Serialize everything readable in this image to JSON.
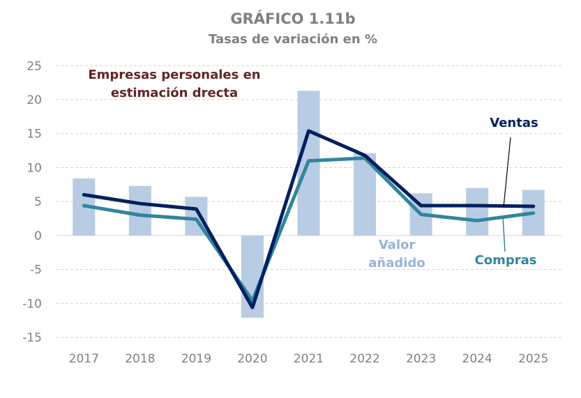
{
  "chart_data": {
    "type": "bar+line",
    "title": "GRÁFICO 1.11b",
    "subtitle": "Tasas de variación en %",
    "xlabel": "",
    "ylabel": "",
    "ylim": [
      -15,
      25
    ],
    "yticks": [
      25,
      20,
      15,
      10,
      5,
      0,
      -5,
      -10,
      -15
    ],
    "grid": true,
    "categories": [
      "2017",
      "2018",
      "2019",
      "2020",
      "2021",
      "2022",
      "2023",
      "2024",
      "2025"
    ],
    "annotation": "Empresas personales en estimación drecta",
    "annotation_lines": [
      "Empresas personales en",
      "estimación drecta"
    ],
    "series": [
      {
        "name": "Valor añadido",
        "label_lines": [
          "Valor",
          "añadido"
        ],
        "type": "bar",
        "color": "#b8cce4",
        "values": [
          8.4,
          7.3,
          5.7,
          -12.1,
          21.3,
          12.1,
          6.2,
          7.0,
          6.7
        ]
      },
      {
        "name": "Compras",
        "type": "line",
        "color": "#31859c",
        "values": [
          4.4,
          3.0,
          2.4,
          -9.6,
          11.0,
          11.4,
          3.1,
          2.2,
          3.3
        ]
      },
      {
        "name": "Ventas",
        "type": "line",
        "color": "#002060",
        "values": [
          6.0,
          4.7,
          3.9,
          -10.6,
          15.4,
          11.8,
          4.4,
          4.4,
          4.3
        ]
      }
    ],
    "colors": {
      "title": "#7f7f7f",
      "annotation": "#632523",
      "axis_text": "#7f7f7f",
      "grid": "#d9d4bf"
    }
  }
}
